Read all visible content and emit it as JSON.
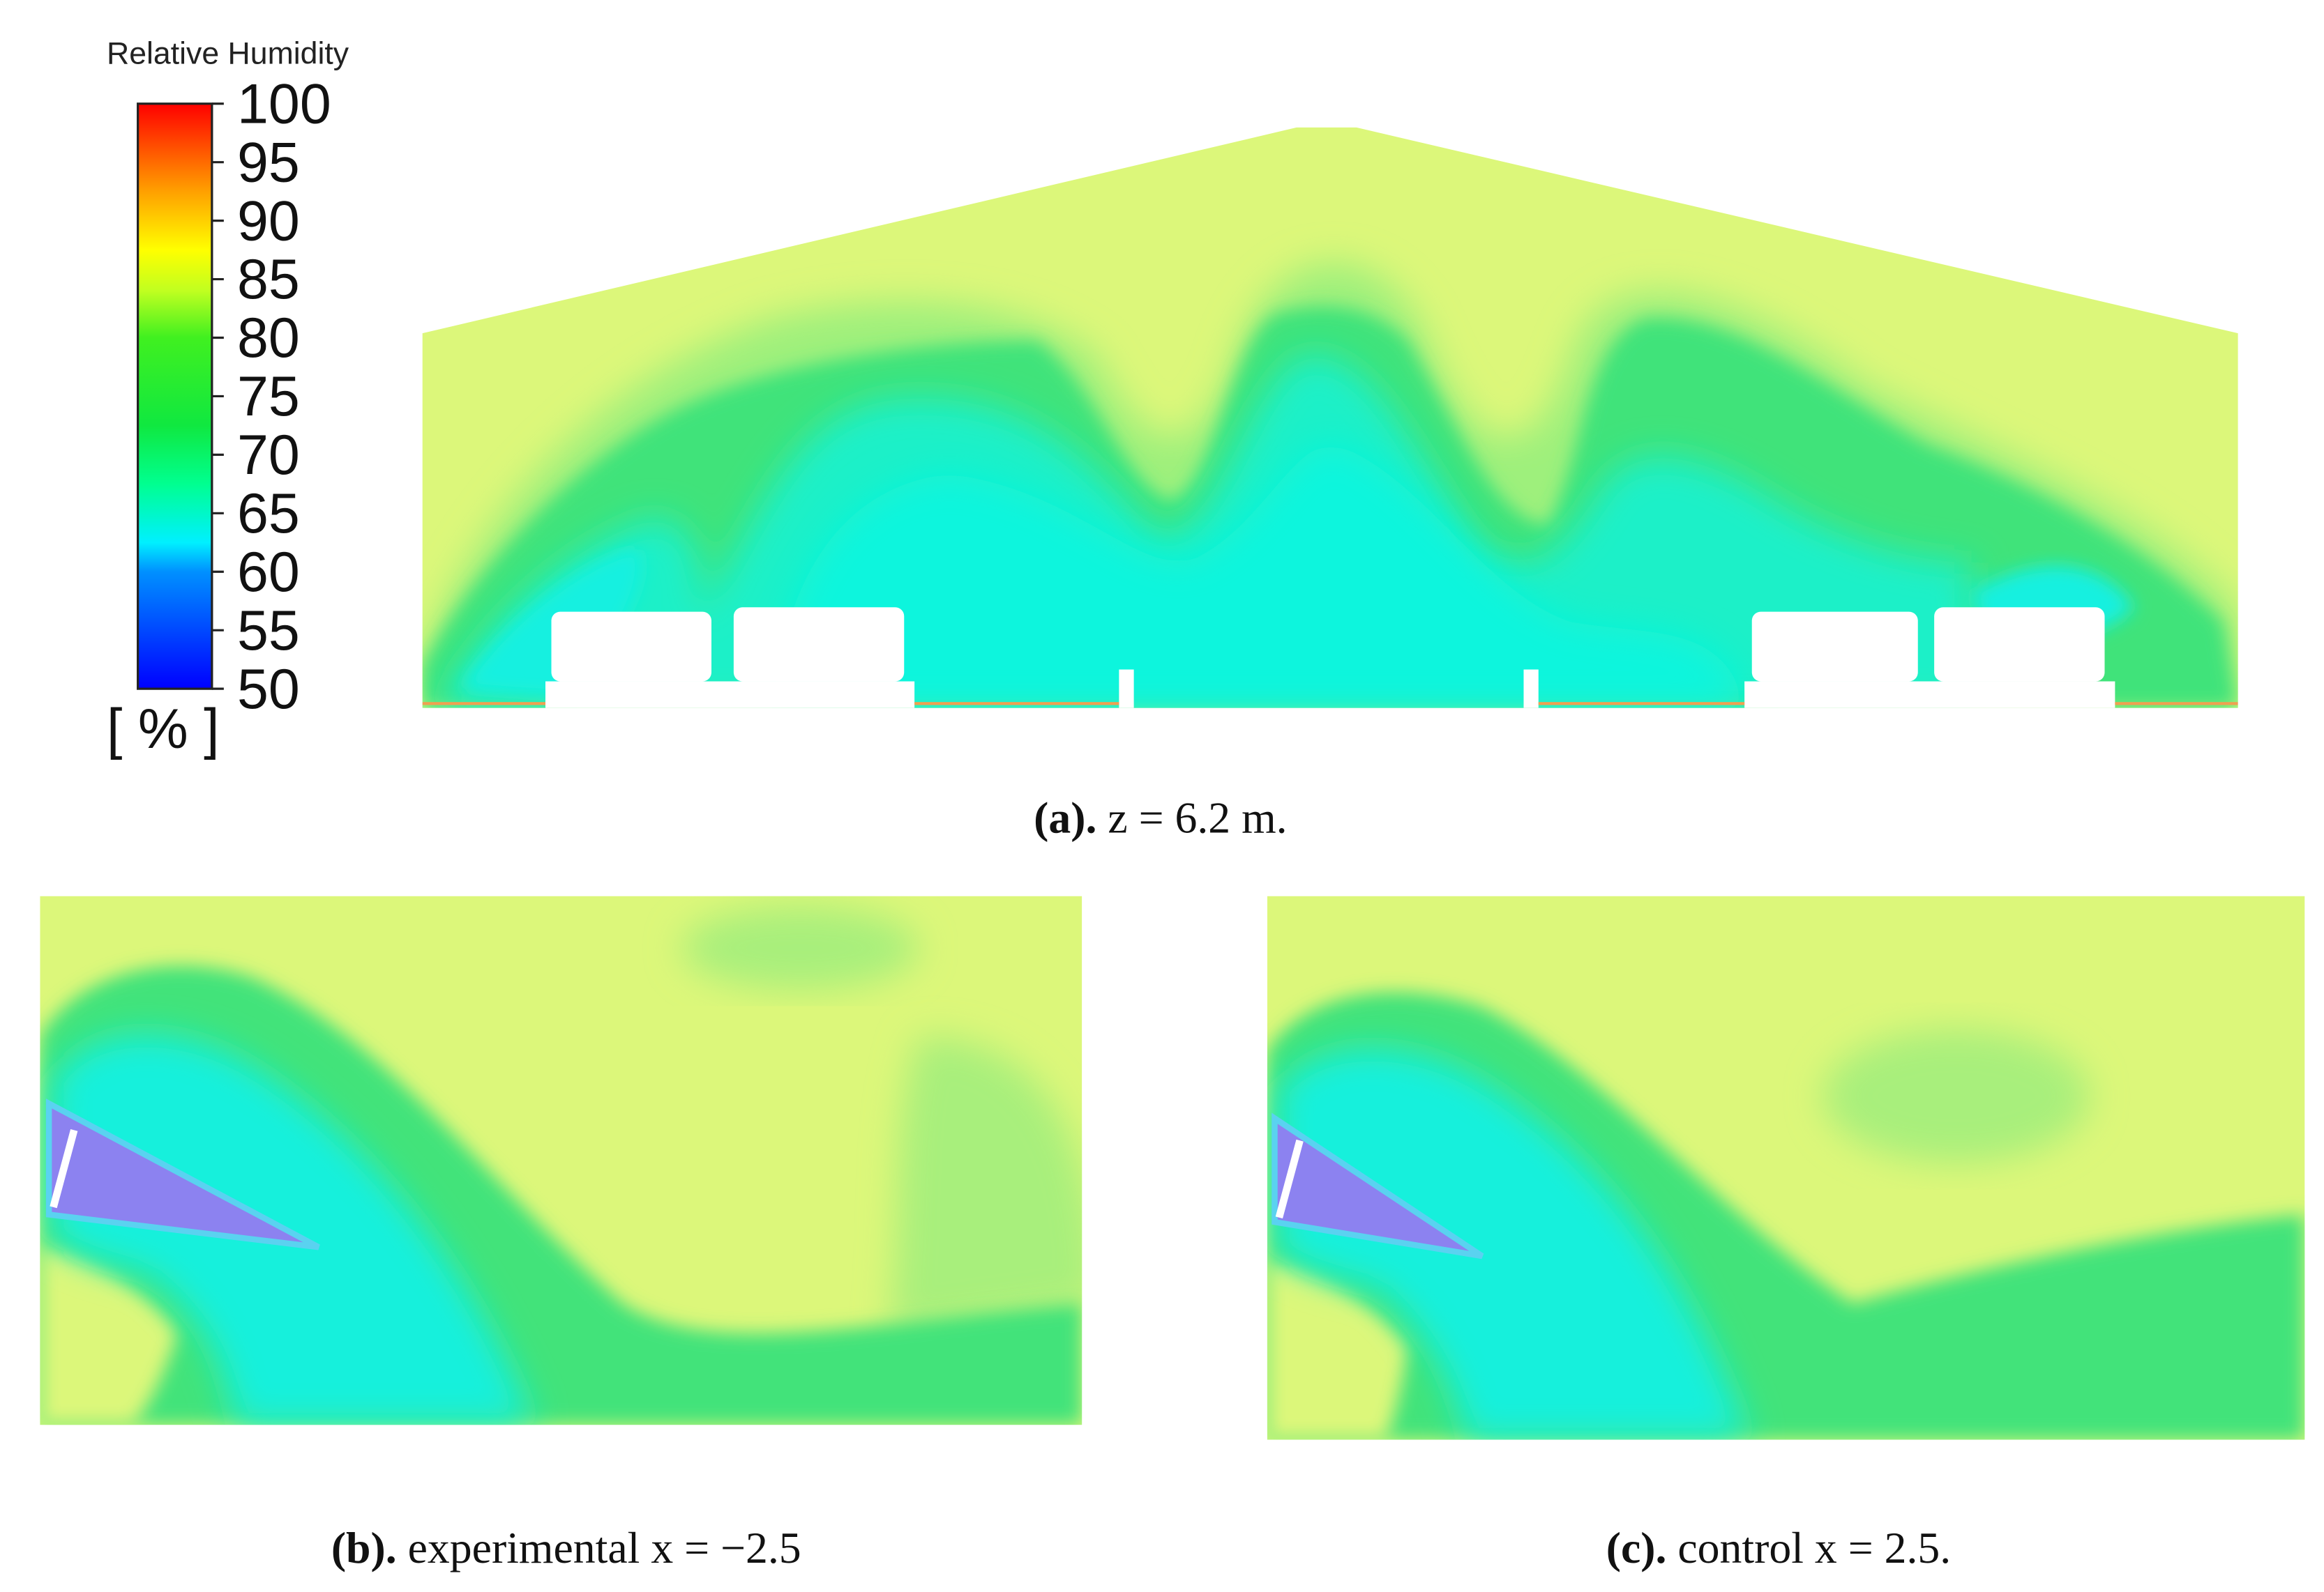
{
  "legend": {
    "title": "Relative Humidity",
    "ticks": [
      100,
      95,
      90,
      85,
      80,
      75,
      70,
      65,
      60,
      55,
      50
    ],
    "unit": "[ % ]"
  },
  "panels": [
    {
      "label": "(a).",
      "caption": "z = 6.2 m."
    },
    {
      "label": "(b).",
      "caption": "experimental x = −2.5"
    },
    {
      "label": "(c).",
      "caption": "control x = 2.5."
    }
  ]
}
